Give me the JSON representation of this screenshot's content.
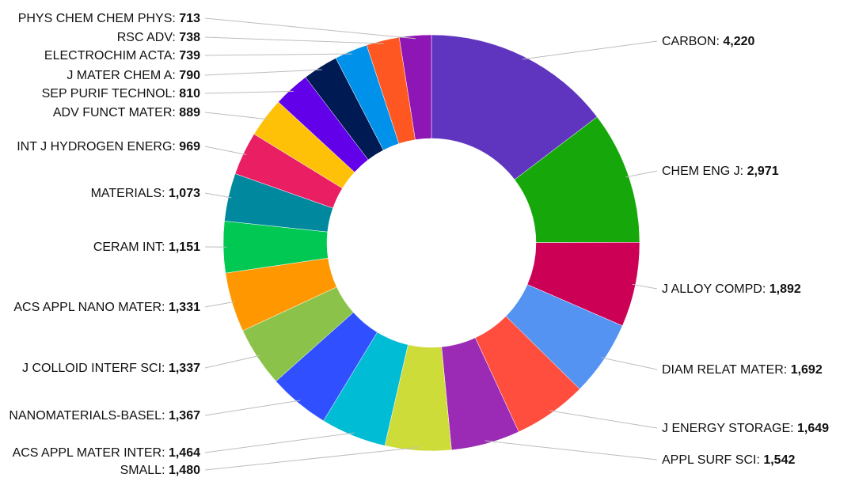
{
  "chart_data": {
    "type": "pie",
    "variant": "donut",
    "legend": "none",
    "start_angle_deg": 0,
    "direction": "clockwise",
    "slices": [
      {
        "label": "CARBON",
        "value": 4220,
        "value_text": "4,220",
        "color": "#5f35bf"
      },
      {
        "label": "CHEM ENG J",
        "value": 2971,
        "value_text": "2,971",
        "color": "#16a80a"
      },
      {
        "label": "J ALLOY COMPD",
        "value": 1892,
        "value_text": "1,892",
        "color": "#cc0055"
      },
      {
        "label": "DIAM RELAT MATER",
        "value": 1692,
        "value_text": "1,692",
        "color": "#5593f3"
      },
      {
        "label": "J ENERGY STORAGE",
        "value": 1649,
        "value_text": "1,649",
        "color": "#ff4d3e"
      },
      {
        "label": "APPL SURF SCI",
        "value": 1542,
        "value_text": "1,542",
        "color": "#9b2ab5"
      },
      {
        "label": "SMALL",
        "value": 1480,
        "value_text": "1,480",
        "color": "#cddc39"
      },
      {
        "label": "ACS APPL MATER INTER",
        "value": 1464,
        "value_text": "1,464",
        "color": "#00bcd4"
      },
      {
        "label": "NANOMATERIALS-BASEL",
        "value": 1367,
        "value_text": "1,367",
        "color": "#304ffe"
      },
      {
        "label": "J COLLOID INTERF SCI",
        "value": 1337,
        "value_text": "1,337",
        "color": "#8bc34a"
      },
      {
        "label": "ACS APPL NANO MATER",
        "value": 1331,
        "value_text": "1,331",
        "color": "#ff9800"
      },
      {
        "label": "CERAM INT",
        "value": 1151,
        "value_text": "1,151",
        "color": "#00c853"
      },
      {
        "label": "MATERIALS",
        "value": 1073,
        "value_text": "1,073",
        "color": "#00899e"
      },
      {
        "label": "INT J HYDROGEN ENERG",
        "value": 969,
        "value_text": "969",
        "color": "#e91e63"
      },
      {
        "label": "ADV FUNCT MATER",
        "value": 889,
        "value_text": "889",
        "color": "#ffc107"
      },
      {
        "label": "SEP PURIF TECHNOL",
        "value": 810,
        "value_text": "810",
        "color": "#6200ea"
      },
      {
        "label": "J MATER CHEM A",
        "value": 790,
        "value_text": "790",
        "color": "#001a54"
      },
      {
        "label": "ELECTROCHIM ACTA",
        "value": 739,
        "value_text": "739",
        "color": "#0091ea"
      },
      {
        "label": "RSC ADV",
        "value": 738,
        "value_text": "738",
        "color": "#ff5722"
      },
      {
        "label": "PHYS CHEM CHEM PHYS",
        "value": 713,
        "value_text": "713",
        "color": "#8e16b5"
      }
    ]
  }
}
